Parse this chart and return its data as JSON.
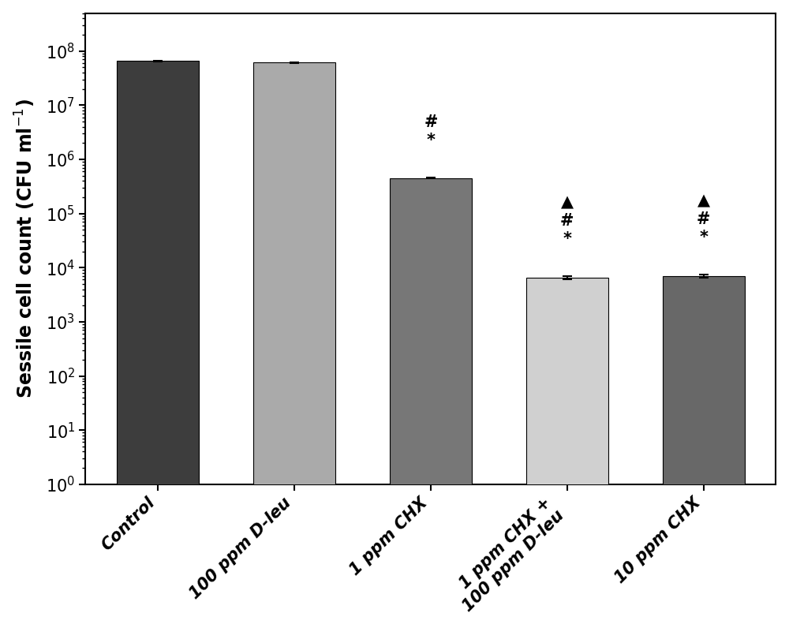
{
  "categories": [
    "Control",
    "100 ppm D-leu",
    "1 ppm CHX",
    "1 ppm CHX +\n100 ppm D-leu",
    "10 ppm CHX"
  ],
  "values": [
    65000000.0,
    61000000.0,
    450000.0,
    6500,
    7000
  ],
  "errors": [
    200000.0,
    300000.0,
    6000,
    400,
    400
  ],
  "colors": [
    "#3d3d3d",
    "#aaaaaa",
    "#777777",
    "#d0d0d0",
    "#686868"
  ],
  "ylabel": "Sessile cell count (CFU ml$^{-1}$)",
  "ylim_min": 1,
  "ylim_max": 500000000.0,
  "annotations": [
    {
      "bar_idx": 2,
      "text": "#\n*"
    },
    {
      "bar_idx": 3,
      "text": "▲\n#\n*"
    },
    {
      "bar_idx": 4,
      "text": "▲\n#\n*"
    }
  ],
  "background_color": "#ffffff",
  "bar_width": 0.6,
  "label_fontsize": 17,
  "tick_fontsize": 15,
  "annotation_fontsize": 15,
  "spine_linewidth": 1.5
}
